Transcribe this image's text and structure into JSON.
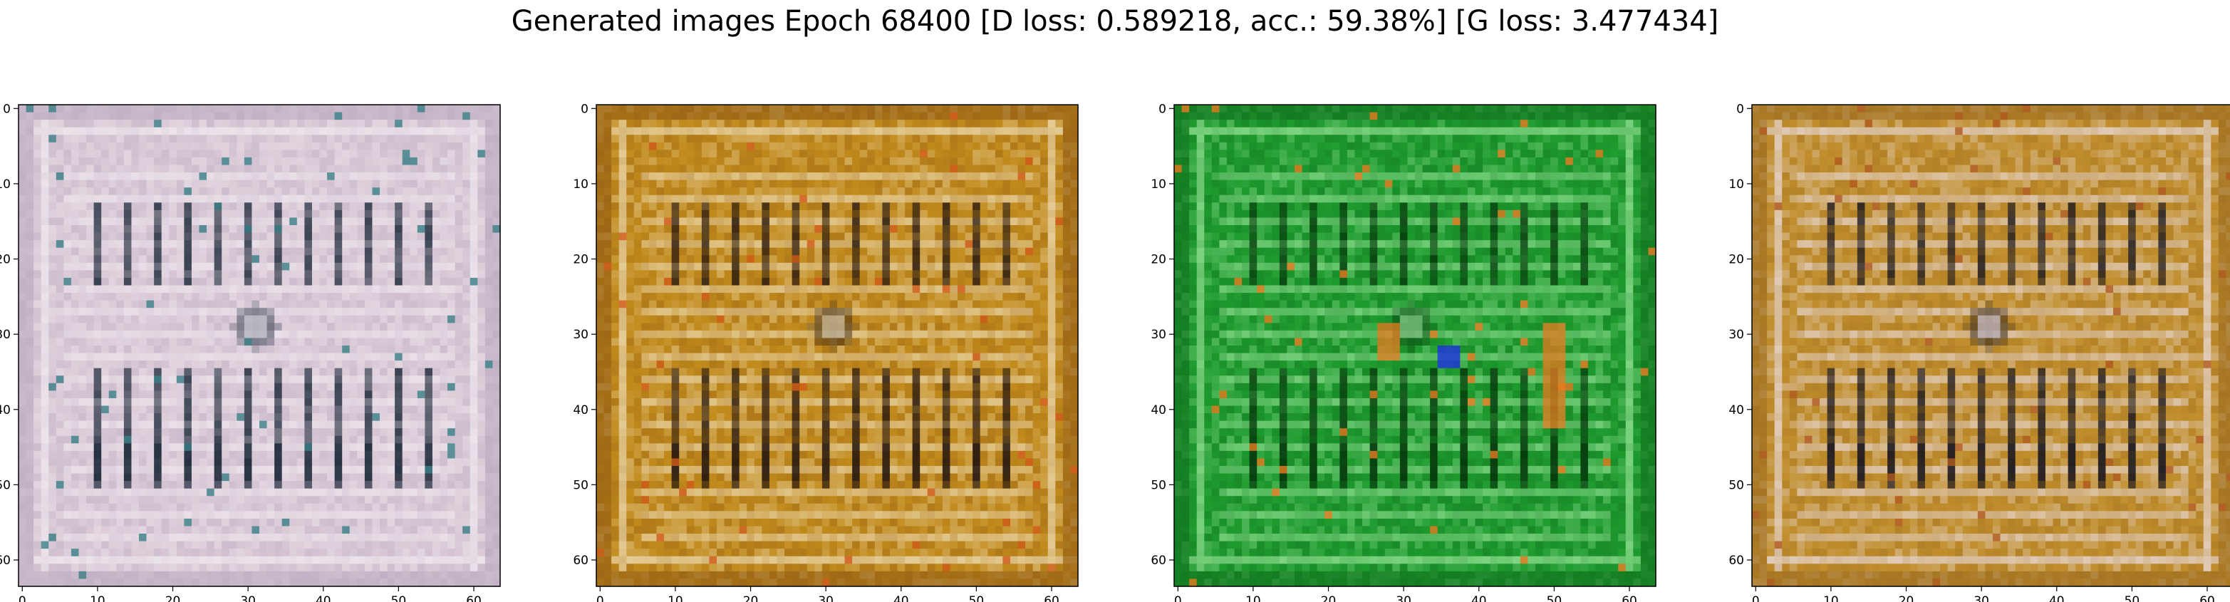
{
  "figure": {
    "title": "Generated images Epoch 68400 [D loss: 0.589218, acc.: 59.38%] [G loss: 3.477434]"
  },
  "axis": {
    "x_ticks": [
      "0",
      "10",
      "20",
      "30",
      "40",
      "50",
      "60"
    ],
    "y_ticks": [
      "0",
      "10",
      "20",
      "30",
      "40",
      "50",
      "60"
    ],
    "xlim": [
      -0.5,
      63.5
    ],
    "ylim": [
      63.5,
      -0.5
    ]
  },
  "panels": [
    {
      "id": "sample-1",
      "palette": {
        "base": "#d9c9d6",
        "light": "#f2ecf2",
        "mid": "#b7a6bd",
        "dark": "#1e2a3a",
        "accent": "#3a7f86"
      }
    },
    {
      "id": "sample-2",
      "palette": {
        "base": "#c18a1c",
        "light": "#f1e3c2",
        "mid": "#8f5a14",
        "dark": "#2a1a10",
        "accent": "#d05a18"
      }
    },
    {
      "id": "sample-3",
      "palette": {
        "base": "#1e9a2e",
        "light": "#9fe89e",
        "mid": "#0f6e1c",
        "dark": "#053a0c",
        "accent": "#e87a20",
        "accent2": "#2038d8"
      }
    },
    {
      "id": "sample-4",
      "palette": {
        "base": "#c08e2c",
        "light": "#ece0e8",
        "mid": "#9a6a20",
        "dark": "#1e1a20",
        "accent": "#b05a20"
      }
    }
  ]
}
